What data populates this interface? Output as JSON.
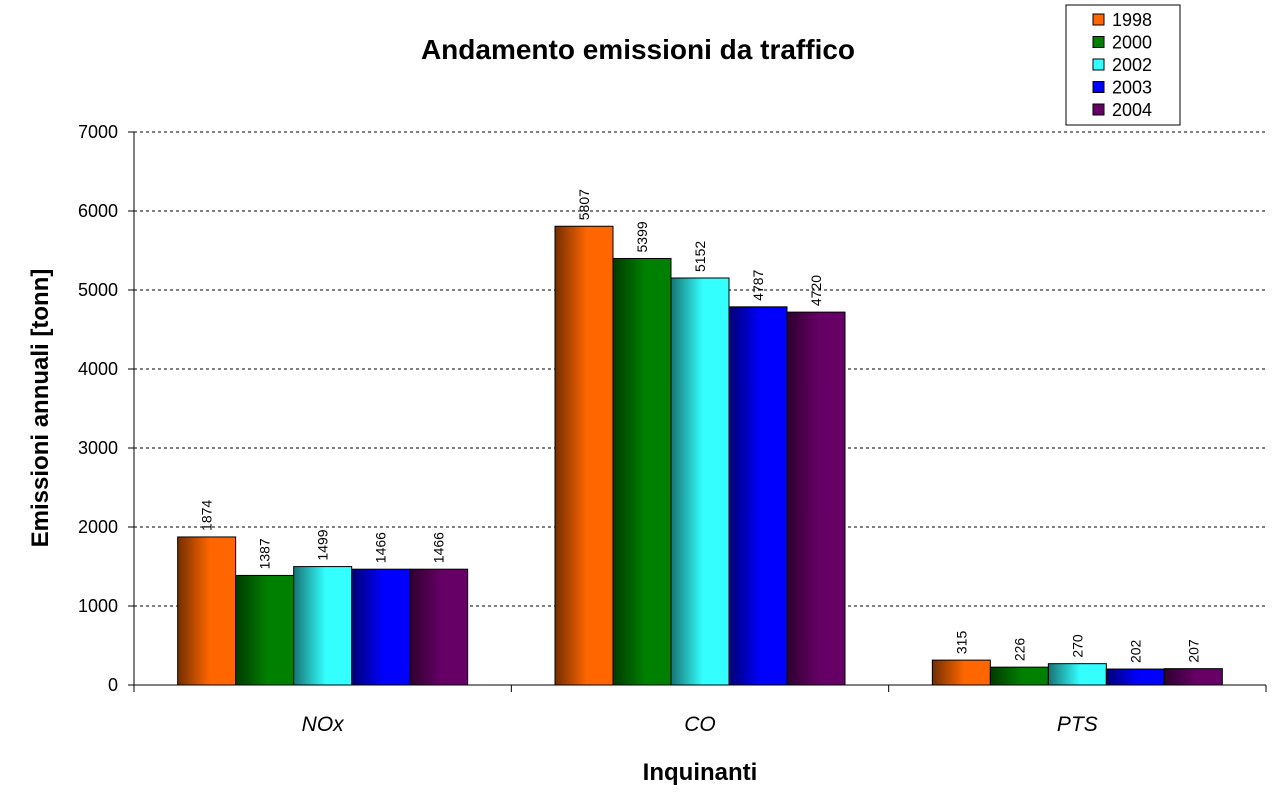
{
  "chart_data": {
    "type": "bar",
    "title": "Andamento emissioni da traffico",
    "xlabel": "Inquinanti",
    "ylabel": "Emissioni annuali [tonn]",
    "categories": [
      "NOx",
      "CO",
      "PTS"
    ],
    "ylim": [
      0,
      7000
    ],
    "yticks": [
      "0",
      "1000",
      "2000",
      "3000",
      "4000",
      "5000",
      "6000",
      "7000"
    ],
    "grid": true,
    "legend_position": "top-right",
    "series": [
      {
        "name": "1998",
        "color": "#FF6600",
        "values": [
          1874,
          5807,
          315
        ]
      },
      {
        "name": "2000",
        "color": "#008000",
        "values": [
          1387,
          5399,
          226
        ]
      },
      {
        "name": "2002",
        "color": "#33FFFF",
        "values": [
          1499,
          5152,
          270
        ]
      },
      {
        "name": "2003",
        "color": "#0000FF",
        "values": [
          1466,
          4787,
          202
        ]
      },
      {
        "name": "2004",
        "color": "#660066",
        "values": [
          1466,
          4720,
          207
        ]
      }
    ]
  }
}
